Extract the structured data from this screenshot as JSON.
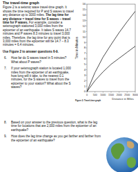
{
  "document": {
    "title": "The travel-time graph",
    "intro_before": "Figure 2 is a seismic wave travel-time graph. It shows the time required for P and S waves to travel any distance up to 3000 miles. ",
    "intro_bold": "The lag time for any distance = travel time for S waves – travel time for P waves.",
    "intro_after": " For example, consider a seismograph stationed 3,000 miles from the epicenter of an earthquake. It takes S waves 14.7 minutes and P waves 8.3 minutes to travel 3,000 miles. Therefore, the lag time for any point that is 3,000 miles from the epicenter will be 14.7 – 8.3 minutes = 6.4 minutes.",
    "instruction": "Use Figure 2 to answer questions 6-9.",
    "questions": [
      {
        "number": "6.",
        "text": "How far do S waves travel in 5 minutes?  What about P waves?"
      },
      {
        "number": "7.",
        "text": "If your seismograph station is located 1,000 miles from the epicenter of an earthquake, how long will it take, to the nearest 0.1 minutes, for the S waves to travel from the epicenter to your station?  What about the S waves?"
      },
      {
        "number": "8.",
        "text": "Based on your answer to the previous question, what is the lag time for locations that are 2,000 miles from the epicenter of an earthquake?"
      },
      {
        "number": "9.",
        "text": "How does the lag time change as you get farther and farther from the epicenter of an earthquake?"
      }
    ]
  },
  "chart_data": {
    "type": "line",
    "caption": "Figure 2: Travel-time graph",
    "xlabel": "Distance in Miles",
    "ylabel": "Time in Minutes",
    "x": [
      0,
      500,
      1000,
      1500,
      2000,
      2500,
      3000
    ],
    "series": [
      {
        "color": "#000000",
        "values": [
          0,
          3.5,
          6.3,
          8.6,
          10.8,
          12.8,
          14.7
        ]
      },
      {
        "color": "#000000",
        "values": [
          0,
          2,
          3.6,
          5,
          6.1,
          7.2,
          8.3
        ]
      }
    ],
    "xlim": [
      0,
      3000
    ],
    "ylim": [
      0,
      16
    ],
    "xticks": [
      0,
      500,
      1000,
      1500,
      2000,
      2500,
      3000
    ],
    "yticks": [
      0,
      1,
      2,
      3,
      4,
      5,
      6,
      7,
      8,
      9,
      10,
      11,
      12,
      13,
      14,
      15,
      16
    ],
    "grid": false
  }
}
